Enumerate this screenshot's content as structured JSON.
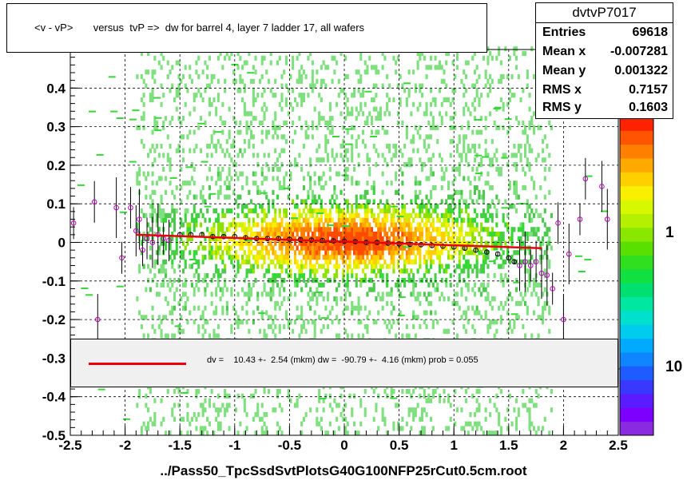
{
  "title": "<v - vP>       versus  tvP =>  dw for barrel 4, layer 7 ladder 17, all wafers",
  "stats": {
    "name": "dvtvP7017",
    "rows": [
      {
        "label": "Entries",
        "value": "69618"
      },
      {
        "label": "Mean x",
        "value": "-0.007281"
      },
      {
        "label": "Mean y",
        "value": "0.001322"
      },
      {
        "label": "RMS x",
        "value": "0.7157"
      },
      {
        "label": "RMS y",
        "value": "0.1603"
      }
    ]
  },
  "fit_text": "dv =    10.43 +-  2.54 (mkm) dw =  -90.79 +-  4.16 (mkm) prob = 0.055",
  "footer": "../Pass50_TpcSsdSvtPlotsG40G100NFP25rCut0.5cm.root",
  "colorbar": {
    "labels": [
      "1",
      "10"
    ],
    "colors": [
      "#8a2be2",
      "#7d00ff",
      "#5a1cff",
      "#3838ff",
      "#1f5cff",
      "#0f85ff",
      "#00aaff",
      "#00ccee",
      "#00e0cc",
      "#00e8a0",
      "#00e070",
      "#10e040",
      "#30e020",
      "#5ae000",
      "#8ae800",
      "#b4f000",
      "#d8f800",
      "#f8f000",
      "#ffd000",
      "#ffaa00",
      "#ff8000",
      "#ff5500",
      "#ff2200"
    ]
  },
  "chart_data": {
    "type": "heatmap",
    "xlim": [
      -2.5,
      2.5
    ],
    "ylim": [
      -0.5,
      0.5
    ],
    "xticks": [
      "-2.5",
      "-2",
      "-1.5",
      "-1",
      "-0.5",
      "0",
      "0.5",
      "1",
      "1.5",
      "2",
      "2.5"
    ],
    "yticks": [
      "-0.5",
      "-0.4",
      "-0.3",
      "-0.2",
      "-0.1",
      "0",
      "0.1",
      "0.2",
      "0.3",
      "0.4"
    ],
    "grid": true,
    "profile_points": [
      {
        "x": -2.47,
        "y": 0.05
      },
      {
        "x": -2.28,
        "y": 0.105
      },
      {
        "x": -2.25,
        "y": -0.2
      },
      {
        "x": -2.08,
        "y": 0.09
      },
      {
        "x": -2.03,
        "y": -0.04
      },
      {
        "x": -1.95,
        "y": 0.09
      },
      {
        "x": -1.9,
        "y": 0.03
      },
      {
        "x": -1.87,
        "y": 0.06
      },
      {
        "x": -1.84,
        "y": -0.02
      },
      {
        "x": -1.8,
        "y": 0.01
      },
      {
        "x": -1.75,
        "y": 0.0
      },
      {
        "x": -1.7,
        "y": 0.02
      },
      {
        "x": -1.65,
        "y": 0.01
      },
      {
        "x": -1.6,
        "y": 0.005
      },
      {
        "x": -1.5,
        "y": 0.02
      },
      {
        "x": -1.4,
        "y": 0.02
      },
      {
        "x": -1.3,
        "y": 0.02
      },
      {
        "x": -1.2,
        "y": 0.015
      },
      {
        "x": -1.1,
        "y": 0.015
      },
      {
        "x": -1.0,
        "y": 0.015
      },
      {
        "x": -0.9,
        "y": 0.012
      },
      {
        "x": -0.8,
        "y": 0.01
      },
      {
        "x": -0.7,
        "y": 0.01
      },
      {
        "x": -0.6,
        "y": 0.01
      },
      {
        "x": -0.5,
        "y": 0.008
      },
      {
        "x": -0.4,
        "y": 0.007
      },
      {
        "x": -0.3,
        "y": 0.006
      },
      {
        "x": -0.2,
        "y": 0.005
      },
      {
        "x": -0.1,
        "y": 0.004
      },
      {
        "x": 0.0,
        "y": 0.003
      },
      {
        "x": 0.1,
        "y": 0.002
      },
      {
        "x": 0.2,
        "y": 0.0
      },
      {
        "x": 0.3,
        "y": 0.0
      },
      {
        "x": 0.4,
        "y": -0.002
      },
      {
        "x": 0.5,
        "y": -0.004
      },
      {
        "x": 0.6,
        "y": -0.005
      },
      {
        "x": 0.7,
        "y": -0.006
      },
      {
        "x": 0.8,
        "y": -0.008
      },
      {
        "x": 0.9,
        "y": -0.01
      },
      {
        "x": 1.0,
        "y": -0.012
      },
      {
        "x": 1.1,
        "y": -0.015
      },
      {
        "x": 1.2,
        "y": -0.02
      },
      {
        "x": 1.3,
        "y": -0.025
      },
      {
        "x": 1.4,
        "y": -0.03
      },
      {
        "x": 1.5,
        "y": -0.04
      },
      {
        "x": 1.55,
        "y": -0.05
      },
      {
        "x": 1.6,
        "y": -0.06
      },
      {
        "x": 1.65,
        "y": -0.05
      },
      {
        "x": 1.7,
        "y": -0.06
      },
      {
        "x": 1.75,
        "y": -0.05
      },
      {
        "x": 1.8,
        "y": -0.08
      },
      {
        "x": 1.85,
        "y": -0.085
      },
      {
        "x": 1.9,
        "y": -0.12
      },
      {
        "x": 1.95,
        "y": 0.05
      },
      {
        "x": 2.0,
        "y": -0.2
      },
      {
        "x": 2.05,
        "y": -0.03
      },
      {
        "x": 2.15,
        "y": 0.06
      },
      {
        "x": 2.2,
        "y": 0.165
      },
      {
        "x": 2.35,
        "y": 0.145
      },
      {
        "x": 2.4,
        "y": 0.06
      }
    ],
    "fit_line": {
      "x1": -1.9,
      "y1": 0.02,
      "x2": 1.8,
      "y2": -0.015
    }
  }
}
